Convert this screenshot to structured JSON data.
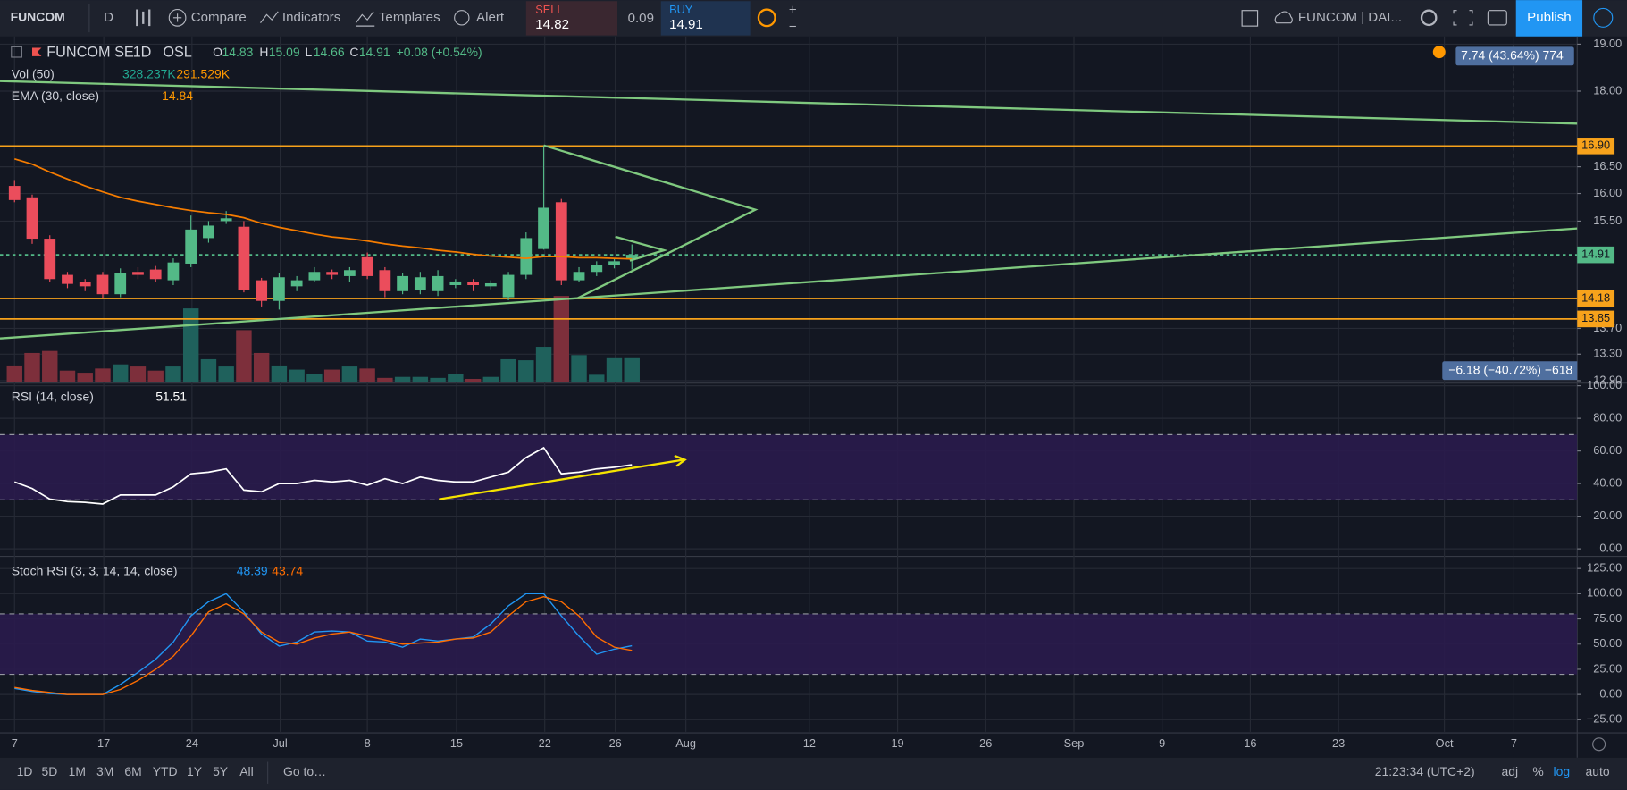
{
  "toolbar": {
    "symbol": "FUNCOM",
    "interval": "D",
    "compare": "Compare",
    "indicators": "Indicators",
    "templates": "Templates",
    "alert": "Alert",
    "sell_label": "SELL",
    "sell_price": 14.82,
    "spread": 0.09,
    "buy_label": "BUY",
    "buy_price": 14.91,
    "zoom_in": "+",
    "zoom_out": "−",
    "layout_name": "FUNCOM | DAI...",
    "publish": "Publish"
  },
  "chart_data": [
    {
      "type": "candlestick",
      "title": "FUNCOM SE",
      "interval": "1D",
      "exchange": "OSL",
      "ohlc_labels": [
        "O",
        "H",
        "L",
        "C"
      ],
      "change_label": "+0.08 (+0.54%)",
      "open": [
        16.14,
        15.93,
        15.19,
        14.57,
        14.45,
        14.57,
        14.25,
        14.62,
        14.66,
        14.48,
        14.76,
        15.2,
        15.5,
        15.4,
        14.48,
        14.14,
        14.38,
        14.48,
        14.62,
        14.55,
        14.87,
        14.65,
        14.3,
        14.32,
        14.3,
        14.4,
        14.45,
        14.38,
        14.2,
        14.57,
        15.01,
        15.84,
        14.48,
        14.62,
        14.74,
        14.83
      ],
      "high": [
        16.25,
        15.98,
        15.25,
        14.62,
        14.5,
        14.62,
        14.68,
        14.7,
        14.72,
        14.85,
        15.6,
        15.5,
        15.68,
        15.5,
        14.52,
        14.6,
        14.55,
        14.7,
        14.66,
        14.7,
        14.95,
        14.7,
        14.6,
        14.62,
        14.65,
        14.5,
        14.5,
        14.48,
        14.62,
        15.3,
        16.9,
        15.9,
        14.7,
        14.8,
        14.85,
        15.09
      ],
      "low": [
        15.84,
        15.1,
        14.45,
        14.35,
        14.3,
        14.18,
        14.2,
        14.5,
        14.45,
        14.4,
        14.7,
        15.12,
        15.45,
        14.28,
        14.05,
        14.0,
        14.3,
        14.45,
        14.5,
        14.45,
        14.5,
        14.2,
        14.25,
        14.25,
        14.22,
        14.35,
        14.3,
        14.33,
        14.15,
        14.5,
        15.0,
        14.4,
        14.45,
        14.55,
        14.68,
        14.66
      ],
      "close": [
        15.88,
        15.19,
        14.5,
        14.42,
        14.38,
        14.25,
        14.6,
        14.57,
        14.5,
        14.78,
        15.35,
        15.42,
        15.55,
        14.32,
        14.14,
        14.53,
        14.48,
        14.62,
        14.57,
        14.65,
        14.55,
        14.3,
        14.55,
        14.53,
        14.55,
        14.46,
        14.4,
        14.43,
        14.57,
        15.2,
        15.74,
        14.48,
        14.62,
        14.74,
        14.8,
        14.91
      ],
      "up_color": "#53b987",
      "down_color": "#eb4d5c",
      "log_scale": true,
      "ylim": [
        12.88,
        19.17
      ],
      "yticks": [
        {
          "value": 19,
          "label": "19.00"
        },
        {
          "value": 18,
          "label": "18.00"
        },
        {
          "value": 16.5,
          "label": "16.50"
        },
        {
          "value": 16,
          "label": "16.00"
        },
        {
          "value": 15.5,
          "label": "15.50"
        },
        {
          "value": 13.7,
          "label": "13.70"
        },
        {
          "value": 13.3,
          "label": "13.30"
        },
        {
          "value": 12.9,
          "label": "12.90"
        }
      ],
      "grid": true,
      "volume": {
        "name": "Vol (50)",
        "last_label": "328.237K",
        "ma_label": "291.529K",
        "up_color": "#1f615c",
        "down_color": "#7d2f3b",
        "values": [
          228000,
          400000,
          428000,
          157000,
          128000,
          186000,
          243000,
          214000,
          157000,
          214000,
          1013000,
          314000,
          214000,
          714000,
          400000,
          228000,
          171000,
          114000,
          171000,
          214000,
          186000,
          57000,
          71000,
          71000,
          57000,
          114000,
          43000,
          71000,
          314000,
          300000,
          485000,
          1185000,
          371000,
          100000,
          328000,
          328237
        ]
      },
      "ema": {
        "name": "EMA (30, close)",
        "color": "#f57c00",
        "values": [
          16.65,
          16.55,
          16.4,
          16.27,
          16.14,
          16.03,
          15.93,
          15.86,
          15.8,
          15.74,
          15.69,
          15.65,
          15.62,
          15.56,
          15.46,
          15.39,
          15.33,
          15.27,
          15.22,
          15.19,
          15.15,
          15.1,
          15.06,
          15.03,
          14.99,
          14.96,
          14.92,
          14.89,
          14.87,
          14.85,
          14.88,
          14.88,
          14.86,
          14.86,
          14.85,
          14.84
        ]
      },
      "price_lines": [
        {
          "value": 16.9,
          "label": "16.90",
          "color": "#f7a21b",
          "dashed": false
        },
        {
          "value": 14.18,
          "label": "14.18",
          "color": "#f7a21b",
          "dashed": false
        },
        {
          "value": 13.85,
          "label": "13.85",
          "color": "#f7a21b",
          "dashed": false
        },
        {
          "value": 14.91,
          "label": "14.91",
          "color": "#53b987",
          "dashed": true
        }
      ],
      "measure_labels": [
        "7.74 (43.64%) 774",
        "−6.18 (−40.72%) −618"
      ]
    },
    {
      "type": "line",
      "name": "RSI (14, close)",
      "color": "#ffffff",
      "values": [
        41,
        37,
        30.5,
        29,
        28.5,
        27.5,
        33,
        33,
        33,
        38,
        46,
        47,
        49,
        36,
        35,
        40,
        40,
        42,
        41,
        42,
        39,
        43,
        40,
        44,
        42,
        41,
        41,
        44,
        47,
        56,
        62,
        46,
        47,
        49,
        50,
        51.51
      ],
      "ylim": [
        -4,
        101
      ],
      "yticks": [
        {
          "value": 100,
          "label": "100.00"
        },
        {
          "value": 80,
          "label": "80.00"
        },
        {
          "value": 60,
          "label": "60.00"
        },
        {
          "value": 40,
          "label": "40.00"
        },
        {
          "value": 20,
          "label": "20.00"
        },
        {
          "value": 0,
          "label": "0.00"
        }
      ],
      "bands": [
        70,
        30
      ],
      "band_color": "#2a1b4d",
      "grid": true
    },
    {
      "type": "line",
      "name": "Stoch RSI (3, 3, 14, 14, close)",
      "series": [
        {
          "color": "#2196f3",
          "values": [
            6,
            3,
            1,
            0,
            0,
            0,
            10,
            22,
            35,
            52,
            78,
            92,
            100,
            82,
            60,
            48,
            52,
            62,
            63,
            62,
            53,
            52,
            47,
            55,
            53,
            55,
            57,
            70,
            88,
            100,
            100,
            78,
            58,
            40,
            45,
            48.39
          ]
        },
        {
          "color": "#ff6d00",
          "values": [
            7,
            4,
            2,
            0,
            0,
            0,
            5,
            14,
            25,
            38,
            58,
            82,
            90,
            80,
            62,
            52,
            50,
            56,
            60,
            62,
            58,
            54,
            50,
            51,
            52,
            55,
            56,
            62,
            78,
            92,
            97,
            92,
            78,
            57,
            47,
            43.74
          ]
        }
      ],
      "ylim": [
        -37,
        136
      ],
      "yticks": [
        {
          "value": 125,
          "label": "125.00"
        },
        {
          "value": 100,
          "label": "100.00"
        },
        {
          "value": 75,
          "label": "75.00"
        },
        {
          "value": 50,
          "label": "50.00"
        },
        {
          "value": 25,
          "label": "25.00"
        },
        {
          "value": 0,
          "label": "0.00"
        },
        {
          "value": -25,
          "label": "−25.00"
        }
      ],
      "bands": [
        80,
        20
      ],
      "band_color": "#2a1b4d",
      "grid": true
    }
  ],
  "time_axis": {
    "labels": [
      "7",
      "17",
      "24",
      "Jul",
      "8",
      "15",
      "22",
      "26",
      "Aug",
      "12",
      "19",
      "26",
      "Sep",
      "9",
      "16",
      "23",
      "Oct",
      "7"
    ]
  },
  "bottom_bar": {
    "ranges": [
      "1D",
      "5D",
      "1M",
      "3M",
      "6M",
      "YTD",
      "1Y",
      "5Y",
      "All"
    ],
    "goto": "Go to…",
    "clock": "21:23:34 (UTC+2)",
    "options": [
      "adj",
      "%",
      "log",
      "auto"
    ]
  }
}
